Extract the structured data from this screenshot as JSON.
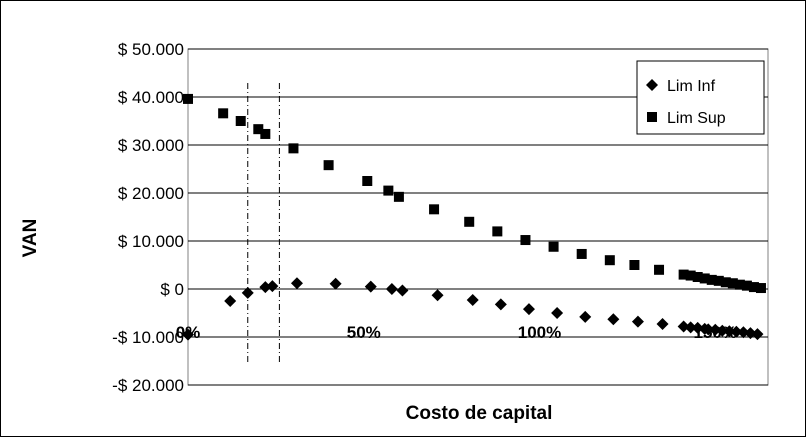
{
  "chart_data": {
    "type": "scatter",
    "title": "",
    "xlabel": "Costo de capital",
    "ylabel": "VAN",
    "xlim": [
      0,
      1.65
    ],
    "ylim": [
      -20000,
      50000
    ],
    "x_ticks": [
      {
        "value": 0,
        "label": "0%"
      },
      {
        "value": 0.5,
        "label": "50%"
      },
      {
        "value": 1.0,
        "label": "100%"
      },
      {
        "value": 1.5,
        "label": "150%"
      }
    ],
    "y_ticks": [
      {
        "value": 50000,
        "label": "$ 50.000"
      },
      {
        "value": 40000,
        "label": "$ 40.000"
      },
      {
        "value": 30000,
        "label": "$ 30.000"
      },
      {
        "value": 20000,
        "label": "$ 20.000"
      },
      {
        "value": 10000,
        "label": "$ 10.000"
      },
      {
        "value": 0,
        "label": "$ 0"
      },
      {
        "value": -10000,
        "label": "-$ 10.000"
      },
      {
        "value": -20000,
        "label": "-$ 20.000"
      }
    ],
    "grid": "horizontal",
    "legend_position": "top-right",
    "reference_lines_x": [
      0.17,
      0.26
    ],
    "series": [
      {
        "name": "Lim Inf",
        "marker": "diamond",
        "color": "#000000",
        "points": [
          [
            0.0,
            -9500
          ],
          [
            0.12,
            -2500
          ],
          [
            0.17,
            -800
          ],
          [
            0.22,
            400
          ],
          [
            0.24,
            600
          ],
          [
            0.31,
            1200
          ],
          [
            0.42,
            1100
          ],
          [
            0.52,
            500
          ],
          [
            0.58,
            0
          ],
          [
            0.61,
            -300
          ],
          [
            0.71,
            -1300
          ],
          [
            0.81,
            -2300
          ],
          [
            0.89,
            -3200
          ],
          [
            0.97,
            -4200
          ],
          [
            1.05,
            -5000
          ],
          [
            1.13,
            -5800
          ],
          [
            1.21,
            -6300
          ],
          [
            1.28,
            -6800
          ],
          [
            1.35,
            -7300
          ],
          [
            1.41,
            -7800
          ],
          [
            1.43,
            -8000
          ],
          [
            1.45,
            -8100
          ],
          [
            1.47,
            -8300
          ],
          [
            1.48,
            -8400
          ],
          [
            1.5,
            -8500
          ],
          [
            1.52,
            -8700
          ],
          [
            1.54,
            -8800
          ],
          [
            1.56,
            -8900
          ],
          [
            1.58,
            -9000
          ],
          [
            1.6,
            -9200
          ],
          [
            1.62,
            -9400
          ]
        ]
      },
      {
        "name": "Lim Sup",
        "marker": "square",
        "color": "#000000",
        "points": [
          [
            0.0,
            39600
          ],
          [
            0.1,
            36600
          ],
          [
            0.15,
            35000
          ],
          [
            0.2,
            33300
          ],
          [
            0.22,
            32300
          ],
          [
            0.3,
            29300
          ],
          [
            0.4,
            25800
          ],
          [
            0.51,
            22500
          ],
          [
            0.57,
            20500
          ],
          [
            0.6,
            19200
          ],
          [
            0.7,
            16600
          ],
          [
            0.8,
            14000
          ],
          [
            0.88,
            12000
          ],
          [
            0.96,
            10200
          ],
          [
            1.04,
            8800
          ],
          [
            1.12,
            7300
          ],
          [
            1.2,
            6000
          ],
          [
            1.27,
            5000
          ],
          [
            1.34,
            4000
          ],
          [
            1.41,
            3000
          ],
          [
            1.43,
            2800
          ],
          [
            1.45,
            2500
          ],
          [
            1.47,
            2200
          ],
          [
            1.49,
            1900
          ],
          [
            1.51,
            1700
          ],
          [
            1.53,
            1400
          ],
          [
            1.55,
            1200
          ],
          [
            1.57,
            900
          ],
          [
            1.59,
            700
          ],
          [
            1.61,
            400
          ],
          [
            1.63,
            200
          ]
        ]
      }
    ]
  }
}
